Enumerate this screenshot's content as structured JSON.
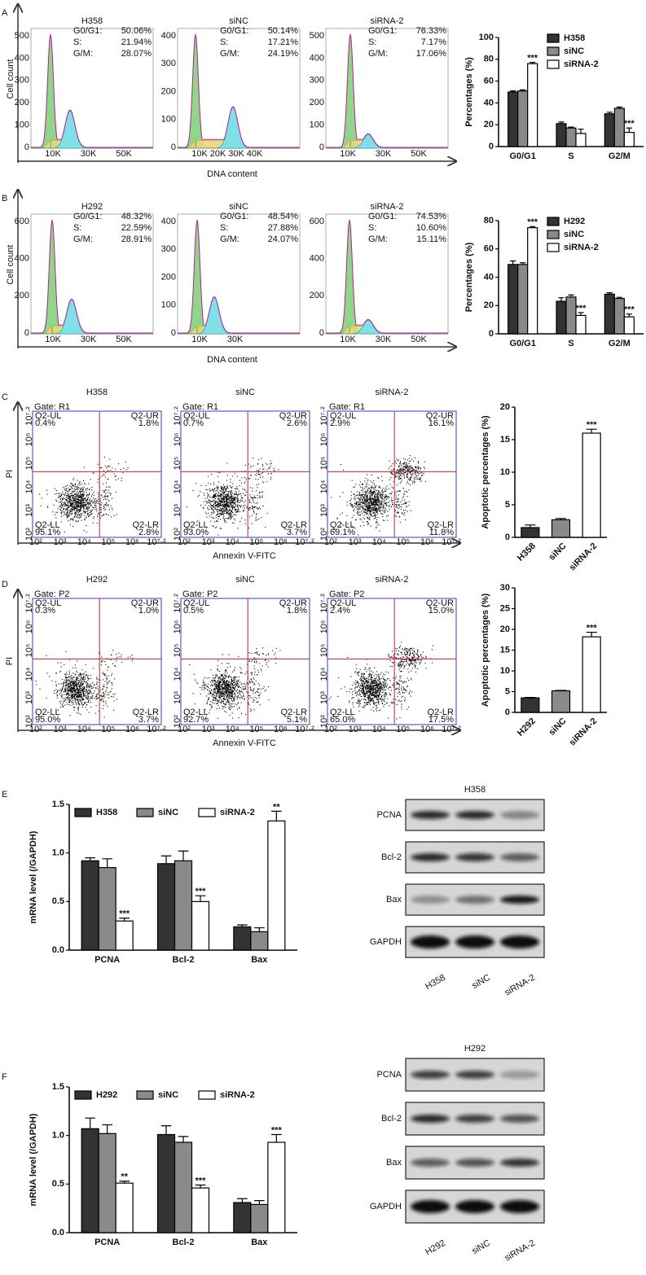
{
  "flow_panels": [
    {
      "letter": "A",
      "ylabel": "Cell count",
      "xlabel": "DNA content",
      "plots": [
        {
          "title": "H358",
          "stats": [
            [
              "G0/G1:",
              "50.06%"
            ],
            [
              "S:",
              "21.94%"
            ],
            [
              "G/M:",
              "28.07%"
            ]
          ],
          "yticks": [
            "0",
            "100",
            "200",
            "300",
            "400",
            "500"
          ],
          "xticks": [
            "10K",
            "30K",
            "50K"
          ]
        },
        {
          "title": "siNC",
          "stats": [
            [
              "G0/G1:",
              "50.14%"
            ],
            [
              "S:",
              "17.21%"
            ],
            [
              "G/M:",
              "24.19%"
            ]
          ],
          "yticks": [
            "0",
            "100",
            "200",
            "300",
            "400"
          ],
          "xticks": [
            "10K",
            "20K",
            "30K",
            "40K"
          ]
        },
        {
          "title": "siRNA-2",
          "stats": [
            [
              "G0/G1:",
              "76.33%"
            ],
            [
              "S:",
              "7.17%"
            ],
            [
              "G/M:",
              "17.06%"
            ]
          ],
          "yticks": [
            "0",
            "100",
            "200",
            "300",
            "400",
            "500"
          ],
          "xticks": [
            "10K",
            "30K",
            "50K"
          ]
        }
      ]
    },
    {
      "letter": "B",
      "ylabel": "Cell count",
      "xlabel": "DNA content",
      "plots": [
        {
          "title": "H292",
          "stats": [
            [
              "G0/G1:",
              "48.32%"
            ],
            [
              "S:",
              "22.59%"
            ],
            [
              "G/M:",
              "28.91%"
            ]
          ],
          "yticks": [
            "0",
            "200",
            "400",
            "600"
          ],
          "xticks": [
            "10K",
            "30K",
            "50K"
          ]
        },
        {
          "title": "siNC",
          "stats": [
            [
              "G0/G1:",
              "48.54%"
            ],
            [
              "S:",
              "27.88%"
            ],
            [
              "G/M:",
              "24.07%"
            ]
          ],
          "yticks": [
            "0",
            "100",
            "200",
            "300",
            "400"
          ],
          "xticks": [
            "10K",
            "30K"
          ]
        },
        {
          "title": "siRNA-2",
          "stats": [
            [
              "G0/G1:",
              "74.53%"
            ],
            [
              "S:",
              "10.60%"
            ],
            [
              "G/M:",
              "15.11%"
            ]
          ],
          "yticks": [
            "0",
            "200",
            "400",
            "600"
          ],
          "xticks": [
            "10K",
            "30K",
            "50K"
          ]
        }
      ]
    }
  ],
  "dot_panels": [
    {
      "letter": "C",
      "ylabel": "PI",
      "xlabel": "Annexin V-FITC",
      "ticks": [
        "10²",
        "10³",
        "10⁴",
        "10⁵",
        "10⁶",
        "10⁷·²"
      ],
      "plots": [
        {
          "title": "H358",
          "gate": "Gate:  R1",
          "quadrants": [
            [
              "Q2-UL",
              "0.4%"
            ],
            [
              "Q2-UR",
              "1.8%"
            ],
            [
              "Q2-LL",
              "95.1%"
            ],
            [
              "Q2-LR",
              "2.8%"
            ]
          ]
        },
        {
          "title": "siNC",
          "gate": "Gate:  R1",
          "quadrants": [
            [
              "Q2-UL",
              "0.7%"
            ],
            [
              "Q2-UR",
              "2.6%"
            ],
            [
              "Q2-LL",
              "93.0%"
            ],
            [
              "Q2-LR",
              "3.7%"
            ]
          ]
        },
        {
          "title": "siRNA-2",
          "gate": "Gate:  R1",
          "quadrants": [
            [
              "Q2-UL",
              "2.9%"
            ],
            [
              "Q2-UR",
              "16.1%"
            ],
            [
              "Q2-LL",
              "69.1%"
            ],
            [
              "Q2-LR",
              "11.8%"
            ]
          ]
        }
      ]
    },
    {
      "letter": "D",
      "ylabel": "PI",
      "xlabel": "Annexin V-FITC",
      "ticks": [
        "10²",
        "10³",
        "10⁴",
        "10⁵",
        "10⁶",
        "10⁷·²"
      ],
      "plots": [
        {
          "title": "H292",
          "gate": "Gate:  P2",
          "quadrants": [
            [
              "Q2-UL",
              "0.3%"
            ],
            [
              "Q2-UR",
              "1.0%"
            ],
            [
              "Q2-LL",
              "95.0%"
            ],
            [
              "Q2-LR",
              "3.7%"
            ]
          ]
        },
        {
          "title": "siNC",
          "gate": "Gate:  P2",
          "quadrants": [
            [
              "Q2-UL",
              "0.5%"
            ],
            [
              "Q2-UR",
              "1.8%"
            ],
            [
              "Q2-LL",
              "92.7%"
            ],
            [
              "Q2-LR",
              "5.1%"
            ]
          ]
        },
        {
          "title": "siRNA-2",
          "gate": "Gate:  P2",
          "quadrants": [
            [
              "Q2-UL",
              "2.4%"
            ],
            [
              "Q2-UR",
              "15.0%"
            ],
            [
              "Q2-LL",
              "65.0%"
            ],
            [
              "Q2-LR",
              "17.5%"
            ]
          ]
        }
      ]
    }
  ],
  "chart_data": [
    {
      "type": "bar",
      "ylabel": "Percentages (%)",
      "categories": [
        "G0/G1",
        "S",
        "G2/M"
      ],
      "ylim": [
        0,
        100
      ],
      "yticks": [
        0,
        20,
        40,
        60,
        80,
        100
      ],
      "legend": "upper right",
      "series": [
        {
          "name": "H358",
          "color": "#333333",
          "values": [
            50,
            21,
            30
          ],
          "errors": [
            1,
            1.5,
            1.5
          ],
          "significance": [
            null,
            null,
            null
          ]
        },
        {
          "name": "siNC",
          "color": "#8a8a8a",
          "values": [
            51,
            17,
            35
          ],
          "errors": [
            1,
            0.8,
            1.2
          ],
          "significance": [
            null,
            null,
            null
          ]
        },
        {
          "name": "siRNA-2",
          "color": "#ffffff",
          "values": [
            76,
            12,
            13
          ],
          "errors": [
            1.2,
            4,
            4
          ],
          "significance": [
            "***",
            null,
            "***"
          ]
        }
      ]
    },
    {
      "type": "bar",
      "ylabel": "Percentages (%)",
      "categories": [
        "G0/G1",
        "S",
        "G2/M"
      ],
      "ylim": [
        0,
        80
      ],
      "yticks": [
        0,
        20,
        40,
        60,
        80
      ],
      "legend": "upper right",
      "series": [
        {
          "name": "H292",
          "color": "#333333",
          "values": [
            49,
            23,
            28
          ],
          "errors": [
            2.5,
            2.5,
            1
          ],
          "significance": [
            null,
            null,
            null
          ]
        },
        {
          "name": "siNC",
          "color": "#8a8a8a",
          "values": [
            49,
            26,
            25
          ],
          "errors": [
            1.2,
            1.5,
            0.8
          ],
          "significance": [
            null,
            null,
            null
          ]
        },
        {
          "name": "siRNA-2",
          "color": "#ffffff",
          "values": [
            75,
            13,
            12
          ],
          "errors": [
            0.8,
            2,
            2
          ],
          "significance": [
            "***",
            "***",
            "***"
          ]
        }
      ]
    },
    {
      "type": "bar",
      "ylabel": "Apoptotic percentages (%)",
      "categories": [
        "H358",
        "siNC",
        "siRNA-2"
      ],
      "values": [
        1.5,
        2.7,
        16
      ],
      "errors": [
        0.4,
        0.2,
        0.6
      ],
      "colors": [
        "#333333",
        "#8a8a8a",
        "#ffffff"
      ],
      "significance": [
        null,
        null,
        "***"
      ],
      "ylim": [
        0,
        20
      ],
      "yticks": [
        0,
        5,
        10,
        15,
        20
      ]
    },
    {
      "type": "bar",
      "ylabel": "Apoptotic percentages (%)",
      "categories": [
        "H292",
        "siNC",
        "siRNA-2"
      ],
      "values": [
        3.5,
        5.2,
        18.2
      ],
      "errors": [
        0.1,
        0.1,
        1.1
      ],
      "colors": [
        "#333333",
        "#8a8a8a",
        "#ffffff"
      ],
      "significance": [
        null,
        null,
        "***"
      ],
      "ylim": [
        0,
        30
      ],
      "yticks": [
        0,
        5,
        10,
        15,
        20,
        25,
        30
      ]
    },
    {
      "type": "bar",
      "panel": "E",
      "ylabel": "mRNA level (/GAPDH)",
      "categories": [
        "PCNA",
        "Bcl-2",
        "Bax"
      ],
      "ylim": [
        0,
        1.5
      ],
      "yticks": [
        {
          "value": 0,
          "label": "0.0"
        },
        0.5,
        {
          "value": 1,
          "label": "1.0"
        },
        1.5
      ],
      "legend": "top",
      "series": [
        {
          "name": "H358",
          "color": "#333333",
          "values": [
            0.92,
            0.89,
            0.24
          ],
          "errors": [
            0.03,
            0.08,
            0.02
          ],
          "significance": [
            null,
            null,
            null
          ]
        },
        {
          "name": "siNC",
          "color": "#8a8a8a",
          "values": [
            0.85,
            0.92,
            0.19
          ],
          "errors": [
            0.09,
            0.1,
            0.04
          ],
          "significance": [
            null,
            null,
            null
          ]
        },
        {
          "name": "siRNA-2",
          "color": "#ffffff",
          "values": [
            0.3,
            0.5,
            1.33
          ],
          "errors": [
            0.03,
            0.06,
            0.1
          ],
          "significance": [
            "***",
            "***",
            "**"
          ]
        }
      ]
    },
    {
      "type": "bar",
      "panel": "F",
      "ylabel": "mRNA level (/GAPDH)",
      "categories": [
        "PCNA",
        "Bcl-2",
        "Bax"
      ],
      "ylim": [
        0,
        1.5
      ],
      "yticks": [
        {
          "value": 0,
          "label": "0.0"
        },
        0.5,
        {
          "value": 1,
          "label": "1.0"
        },
        1.5
      ],
      "legend": "top",
      "series": [
        {
          "name": "H292",
          "color": "#333333",
          "values": [
            1.07,
            1.01,
            0.31
          ],
          "errors": [
            0.11,
            0.09,
            0.04
          ],
          "significance": [
            null,
            null,
            null
          ]
        },
        {
          "name": "siNC",
          "color": "#8a8a8a",
          "values": [
            1.02,
            0.93,
            0.29
          ],
          "errors": [
            0.09,
            0.06,
            0.04
          ],
          "significance": [
            null,
            null,
            null
          ]
        },
        {
          "name": "siRNA-2",
          "color": "#ffffff",
          "values": [
            0.51,
            0.46,
            0.93
          ],
          "errors": [
            0.02,
            0.03,
            0.08
          ],
          "significance": [
            "**",
            "***",
            "***"
          ]
        }
      ]
    }
  ],
  "blots": [
    {
      "title": "H358",
      "rows": [
        "PCNA",
        "Bcl-2",
        "Bax",
        "GAPDH"
      ],
      "lanes": [
        "H358",
        "siNC",
        "siRNA-2"
      ]
    },
    {
      "title": "H292",
      "rows": [
        "PCNA",
        "Bcl-2",
        "Bax",
        "GAPDH"
      ],
      "lanes": [
        "H292",
        "siNC",
        "siRNA-2"
      ]
    }
  ]
}
